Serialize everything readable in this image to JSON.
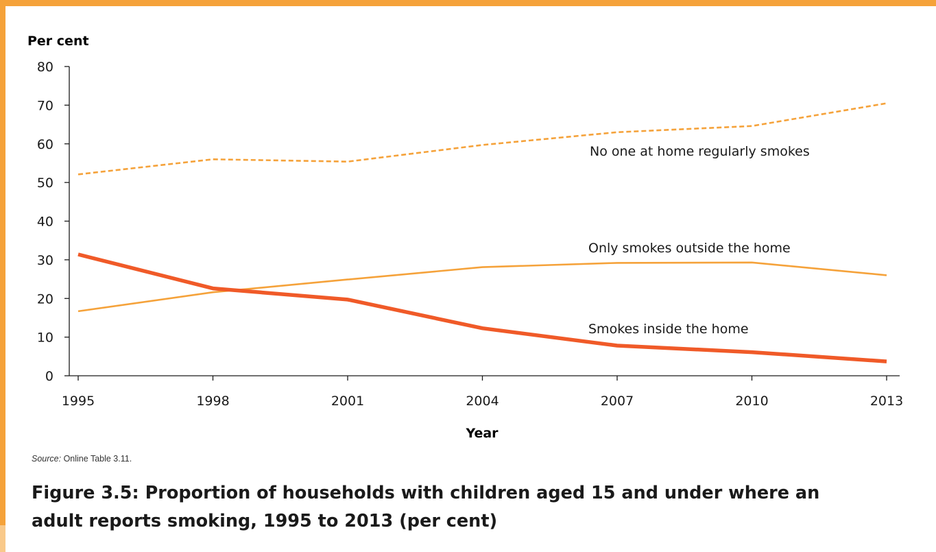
{
  "colors": {
    "frame": "#f5a23a",
    "frame_light": "#f9c98a",
    "series_thick": "#f05a28",
    "series_thin": "#f5a23a"
  },
  "chart_data": {
    "type": "line",
    "ylabel": "Per cent",
    "xlabel": "Year",
    "ylim": [
      0,
      80
    ],
    "yticks": [
      0,
      10,
      20,
      30,
      40,
      50,
      60,
      70,
      80
    ],
    "x": [
      1995,
      1998,
      2001,
      2004,
      2007,
      2010,
      2013
    ],
    "grid": false,
    "legend": "none",
    "series": [
      {
        "name": "No one at home regularly smokes",
        "style": "dashed",
        "values": [
          52.1,
          56.0,
          55.4,
          59.7,
          63.0,
          64.6,
          70.5
        ]
      },
      {
        "name": "Only smokes outside the home",
        "style": "thin",
        "values": [
          16.7,
          21.6,
          24.9,
          28.1,
          29.2,
          29.3,
          26.0
        ]
      },
      {
        "name": "Smokes inside the home",
        "style": "thick",
        "values": [
          31.4,
          22.6,
          19.7,
          12.3,
          7.8,
          6.1,
          3.7
        ]
      }
    ]
  },
  "source": {
    "label": "Source:",
    "text": " Online Table 3.11."
  },
  "figure_title": "Figure 3.5: Proportion of households with children aged 15 and under where an adult reports smoking, 1995 to 2013 (per cent)"
}
